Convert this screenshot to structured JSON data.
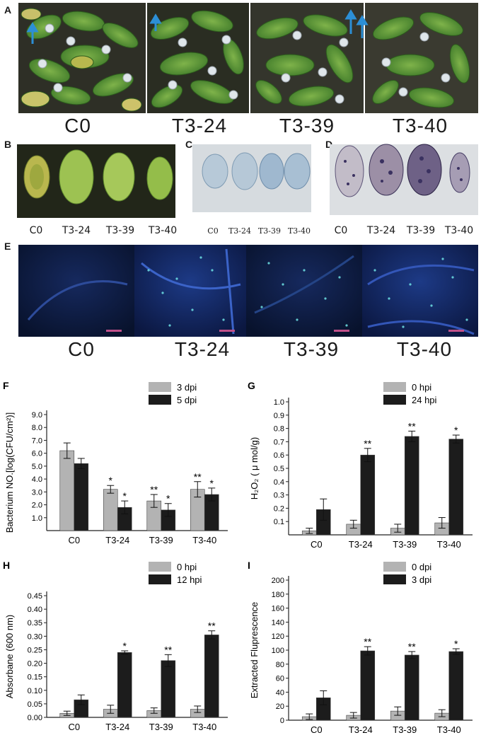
{
  "panels": {
    "A": {
      "letter": "A",
      "genotypes": [
        "C0",
        "T3-24",
        "T3-39",
        "T3-40"
      ]
    },
    "B": {
      "letter": "B",
      "genotypes": [
        "C0",
        "T3-24",
        "T3-39",
        "T3-40"
      ]
    },
    "C": {
      "letter": "C",
      "genotypes": [
        "C0",
        "T3-24",
        "T3-39",
        "T3-40"
      ]
    },
    "D": {
      "letter": "D",
      "genotypes": [
        "C0",
        "T3-24",
        "T3-39",
        "T3-40"
      ]
    },
    "E": {
      "letter": "E",
      "genotypes": [
        "C0",
        "T3-24",
        "T3-39",
        "T3-40"
      ]
    }
  },
  "colors": {
    "light_bar": "#b3b3b3",
    "dark_bar": "#1c1c1c",
    "plant_bg": "#2b2f22",
    "stain_bg": "#d2d8dd",
    "fluor_bg": "#0c1a3c",
    "scale_bar": "#c0508a",
    "arrow": "#2c8fd6"
  },
  "chart_data": [
    {
      "id": "F",
      "letter": "F",
      "type": "bar",
      "ylabel": "Bacterium NO.[log(CFU/cm²)]",
      "ylim": [
        0,
        9.0
      ],
      "yticks": [
        "1.0",
        "2.0",
        "3.0",
        "4.0",
        "5.0",
        "6.0",
        "7.0",
        "8.0",
        "9.0"
      ],
      "ytick_values": [
        1,
        2,
        3,
        4,
        5,
        6,
        7,
        8,
        9
      ],
      "categories": [
        "C0",
        "T3-24",
        "T3-39",
        "T3-40"
      ],
      "series": [
        {
          "name": "3 dpi",
          "values": [
            6.2,
            3.2,
            2.3,
            3.2
          ],
          "errors": [
            0.6,
            0.3,
            0.5,
            0.6
          ],
          "marks": [
            "",
            "*",
            "**",
            "**"
          ]
        },
        {
          "name": "5 dpi",
          "values": [
            5.2,
            1.8,
            1.6,
            2.8
          ],
          "errors": [
            0.4,
            0.5,
            0.5,
            0.5
          ],
          "marks": [
            "",
            "*",
            "*",
            "*"
          ]
        }
      ]
    },
    {
      "id": "G",
      "letter": "G",
      "type": "bar",
      "ylabel": "H₂O₂ ( μ mol/g)",
      "ylim": [
        0,
        1.0
      ],
      "yticks": [
        "0.1",
        "0.2",
        "0.3",
        "0.4",
        "0.5",
        "0.6",
        "0.7",
        "0.8",
        "0.9",
        "1.0"
      ],
      "ytick_values": [
        0.1,
        0.2,
        0.3,
        0.4,
        0.5,
        0.6,
        0.7,
        0.8,
        0.9,
        1.0
      ],
      "categories": [
        "C0",
        "T3-24",
        "T3-39",
        "T3-40"
      ],
      "series": [
        {
          "name": "0 hpi",
          "values": [
            0.03,
            0.08,
            0.05,
            0.09
          ],
          "errors": [
            0.02,
            0.03,
            0.03,
            0.04
          ],
          "marks": [
            "",
            "",
            "",
            ""
          ]
        },
        {
          "name": "24 hpi",
          "values": [
            0.19,
            0.6,
            0.74,
            0.72
          ],
          "errors": [
            0.08,
            0.05,
            0.04,
            0.03
          ],
          "marks": [
            "",
            "**",
            "**",
            "*"
          ]
        }
      ]
    },
    {
      "id": "H",
      "letter": "H",
      "type": "bar",
      "ylabel": "Absorbane (600 nm)",
      "ylim": [
        0,
        0.45
      ],
      "yticks": [
        "0.00",
        "0.05",
        "0.10",
        "0.15",
        "0.20",
        "0.25",
        "0.30",
        "0.35",
        "0.40",
        "0.45"
      ],
      "ytick_values": [
        0,
        0.05,
        0.1,
        0.15,
        0.2,
        0.25,
        0.3,
        0.35,
        0.4,
        0.45
      ],
      "categories": [
        "C0",
        "T3-24",
        "T3-39",
        "T3-40"
      ],
      "series": [
        {
          "name": "0 hpi",
          "values": [
            0.015,
            0.03,
            0.025,
            0.03
          ],
          "errors": [
            0.008,
            0.015,
            0.01,
            0.012
          ],
          "marks": [
            "",
            "",
            "",
            ""
          ]
        },
        {
          "name": "12 hpi",
          "values": [
            0.065,
            0.24,
            0.21,
            0.305
          ],
          "errors": [
            0.018,
            0.006,
            0.022,
            0.015
          ],
          "marks": [
            "",
            "*",
            "**",
            "**"
          ]
        }
      ]
    },
    {
      "id": "I",
      "letter": "I",
      "type": "bar",
      "ylabel": "Extracted Fluprescence",
      "ylim": [
        0,
        200
      ],
      "yticks": [
        "0",
        "20",
        "40",
        "60",
        "80",
        "100",
        "120",
        "140",
        "160",
        "180",
        "200"
      ],
      "ytick_values": [
        0,
        20,
        40,
        60,
        80,
        100,
        120,
        140,
        160,
        180,
        200
      ],
      "categories": [
        "C0",
        "T3-24",
        "T3-39",
        "T3-40"
      ],
      "series": [
        {
          "name": "0 dpi",
          "values": [
            5,
            7,
            13,
            10
          ],
          "errors": [
            4,
            4,
            6,
            5
          ],
          "marks": [
            "",
            "",
            "",
            ""
          ]
        },
        {
          "name": "3 dpi",
          "values": [
            32,
            99,
            93,
            98
          ],
          "errors": [
            10,
            6,
            5,
            4
          ],
          "marks": [
            "",
            "**",
            "**",
            "*"
          ]
        }
      ]
    }
  ]
}
